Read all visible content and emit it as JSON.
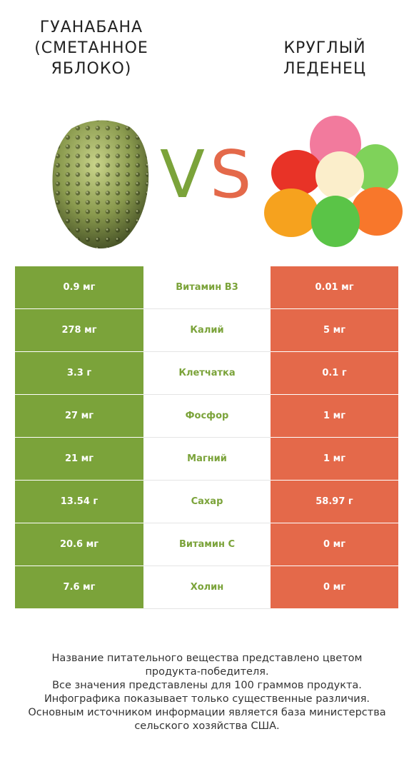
{
  "header": {
    "left_title": "ГУАНАБАНА\n(СМЕТАННОЕ\nЯБЛОКО)",
    "right_title": "КРУГЛЫЙ\nЛЕДЕНЕЦ",
    "vs_label": "VS"
  },
  "colors": {
    "left_accent": "#7ba33a",
    "right_accent": "#e4694a",
    "vs_v": "#7ba33a",
    "vs_s": "#e4694a"
  },
  "images": {
    "left": "soursop-fruit-image",
    "right": "gumdrops-candy-image"
  },
  "table": {
    "rows": [
      {
        "left": "0.9 мг",
        "nutrient": "Витамин B3",
        "right": "0.01 мг",
        "winner": "left"
      },
      {
        "left": "278 мг",
        "nutrient": "Калий",
        "right": "5 мг",
        "winner": "left"
      },
      {
        "left": "3.3 г",
        "nutrient": "Клетчатка",
        "right": "0.1 г",
        "winner": "left"
      },
      {
        "left": "27 мг",
        "nutrient": "Фосфор",
        "right": "1 мг",
        "winner": "left"
      },
      {
        "left": "21 мг",
        "nutrient": "Магний",
        "right": "1 мг",
        "winner": "left"
      },
      {
        "left": "13.54 г",
        "nutrient": "Сахар",
        "right": "58.97 г",
        "winner": "left"
      },
      {
        "left": "20.6 мг",
        "nutrient": "Витамин C",
        "right": "0 мг",
        "winner": "left"
      },
      {
        "left": "7.6 мг",
        "nutrient": "Холин",
        "right": "0 мг",
        "winner": "left"
      }
    ]
  },
  "footer": {
    "text": "Название питательного вещества представлено цветом\nпродукта-победителя.\nВсе значения представлены для 100 граммов продукта.\nИнфографика показывает только существенные различия.\nОсновным источником информации является база министерства\nсельского хозяйства США."
  }
}
